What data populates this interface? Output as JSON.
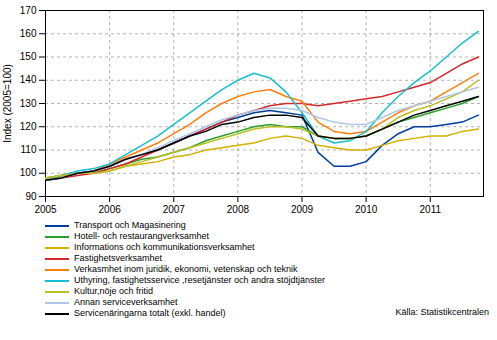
{
  "chart_data": {
    "type": "line",
    "ylabel": "Index (2005=100)",
    "annotations": [
      "Källa: Statistikcentralen"
    ],
    "x": [
      2005.0,
      2005.25,
      2005.5,
      2005.75,
      2006.0,
      2006.25,
      2006.5,
      2006.75,
      2007.0,
      2007.25,
      2007.5,
      2007.75,
      2008.0,
      2008.25,
      2008.5,
      2008.75,
      2009.0,
      2009.25,
      2009.5,
      2009.75,
      2010.0,
      2010.25,
      2010.5,
      2010.75,
      2011.0,
      2011.25,
      2011.5,
      2011.75
    ],
    "xlim": [
      2005.0,
      2011.83
    ],
    "xticks": [
      2005,
      2006,
      2007,
      2008,
      2009,
      2010,
      2011
    ],
    "ylim": [
      90,
      170
    ],
    "yticks": [
      90,
      100,
      110,
      120,
      130,
      140,
      150,
      160,
      170
    ],
    "grid": true,
    "series": [
      {
        "name": "Transport och Magasinering",
        "color": "#003f9e",
        "values": [
          97,
          98,
          100,
          101,
          103,
          106,
          108,
          110,
          113,
          116,
          119,
          122,
          124,
          126,
          127,
          126,
          125,
          109,
          103,
          103,
          105,
          112,
          117,
          120,
          120,
          121,
          122,
          125
        ]
      },
      {
        "name": "Hotell- och restaurangverksamhet",
        "color": "#2ca02c",
        "values": [
          98,
          99,
          100,
          100,
          102,
          104,
          106,
          107,
          109,
          111,
          114,
          116,
          118,
          120,
          121,
          120,
          120,
          116,
          115,
          115,
          116,
          119,
          122,
          124,
          126,
          128,
          130,
          133
        ]
      },
      {
        "name": "Informations och kommunikationsverksamhet",
        "color": "#d4b000",
        "values": [
          98,
          99,
          100,
          100,
          101,
          103,
          104,
          105,
          107,
          108,
          110,
          111,
          112,
          113,
          115,
          116,
          115,
          112,
          111,
          110,
          110,
          112,
          114,
          115,
          116,
          116,
          118,
          119
        ]
      },
      {
        "name": "Fastighetsverksamhet",
        "color": "#d62728",
        "values": [
          97,
          98,
          99,
          100,
          102,
          104,
          107,
          110,
          113,
          116,
          119,
          122,
          125,
          127,
          129,
          130,
          130,
          129,
          130,
          131,
          132,
          133,
          135,
          137,
          139,
          143,
          147,
          150
        ]
      },
      {
        "name": "Verkasmhet inom juridik, ekonomi, vetenskap och teknik",
        "color": "#ff7f0e",
        "values": [
          97,
          99,
          100,
          101,
          104,
          107,
          110,
          113,
          117,
          121,
          126,
          130,
          133,
          135,
          136,
          133,
          131,
          122,
          118,
          117,
          118,
          122,
          126,
          129,
          131,
          135,
          139,
          143
        ]
      },
      {
        "name": "Uthyring, fastighetsservice ,resetjänster och andra stöjdtjänster",
        "color": "#17becf",
        "values": [
          97,
          99,
          101,
          102,
          104,
          108,
          112,
          116,
          121,
          126,
          131,
          136,
          140,
          143,
          141,
          135,
          126,
          116,
          113,
          114,
          118,
          126,
          133,
          139,
          144,
          150,
          156,
          161
        ]
      },
      {
        "name": "Kultur,nöje och fritid",
        "color": "#bcbd22",
        "values": [
          98,
          99,
          100,
          100,
          101,
          103,
          105,
          107,
          109,
          111,
          113,
          115,
          117,
          119,
          120,
          120,
          119,
          116,
          115,
          115,
          116,
          119,
          124,
          127,
          129,
          132,
          135,
          140
        ]
      },
      {
        "name": "Annan serviceverksamhet",
        "color": "#aec7e8",
        "values": [
          97,
          98,
          100,
          101,
          103,
          106,
          108,
          111,
          114,
          117,
          120,
          123,
          125,
          127,
          128,
          128,
          127,
          124,
          122,
          121,
          121,
          124,
          127,
          129,
          131,
          133,
          135,
          137
        ]
      },
      {
        "name": "Servicenäringarna totalt (exkl. handel)",
        "color": "#000000",
        "values": [
          97,
          98,
          100,
          101,
          103,
          106,
          108,
          110,
          113,
          116,
          118,
          121,
          122,
          124,
          125,
          125,
          124,
          116,
          115,
          115,
          116,
          119,
          122,
          125,
          127,
          129,
          131,
          133
        ]
      }
    ]
  }
}
